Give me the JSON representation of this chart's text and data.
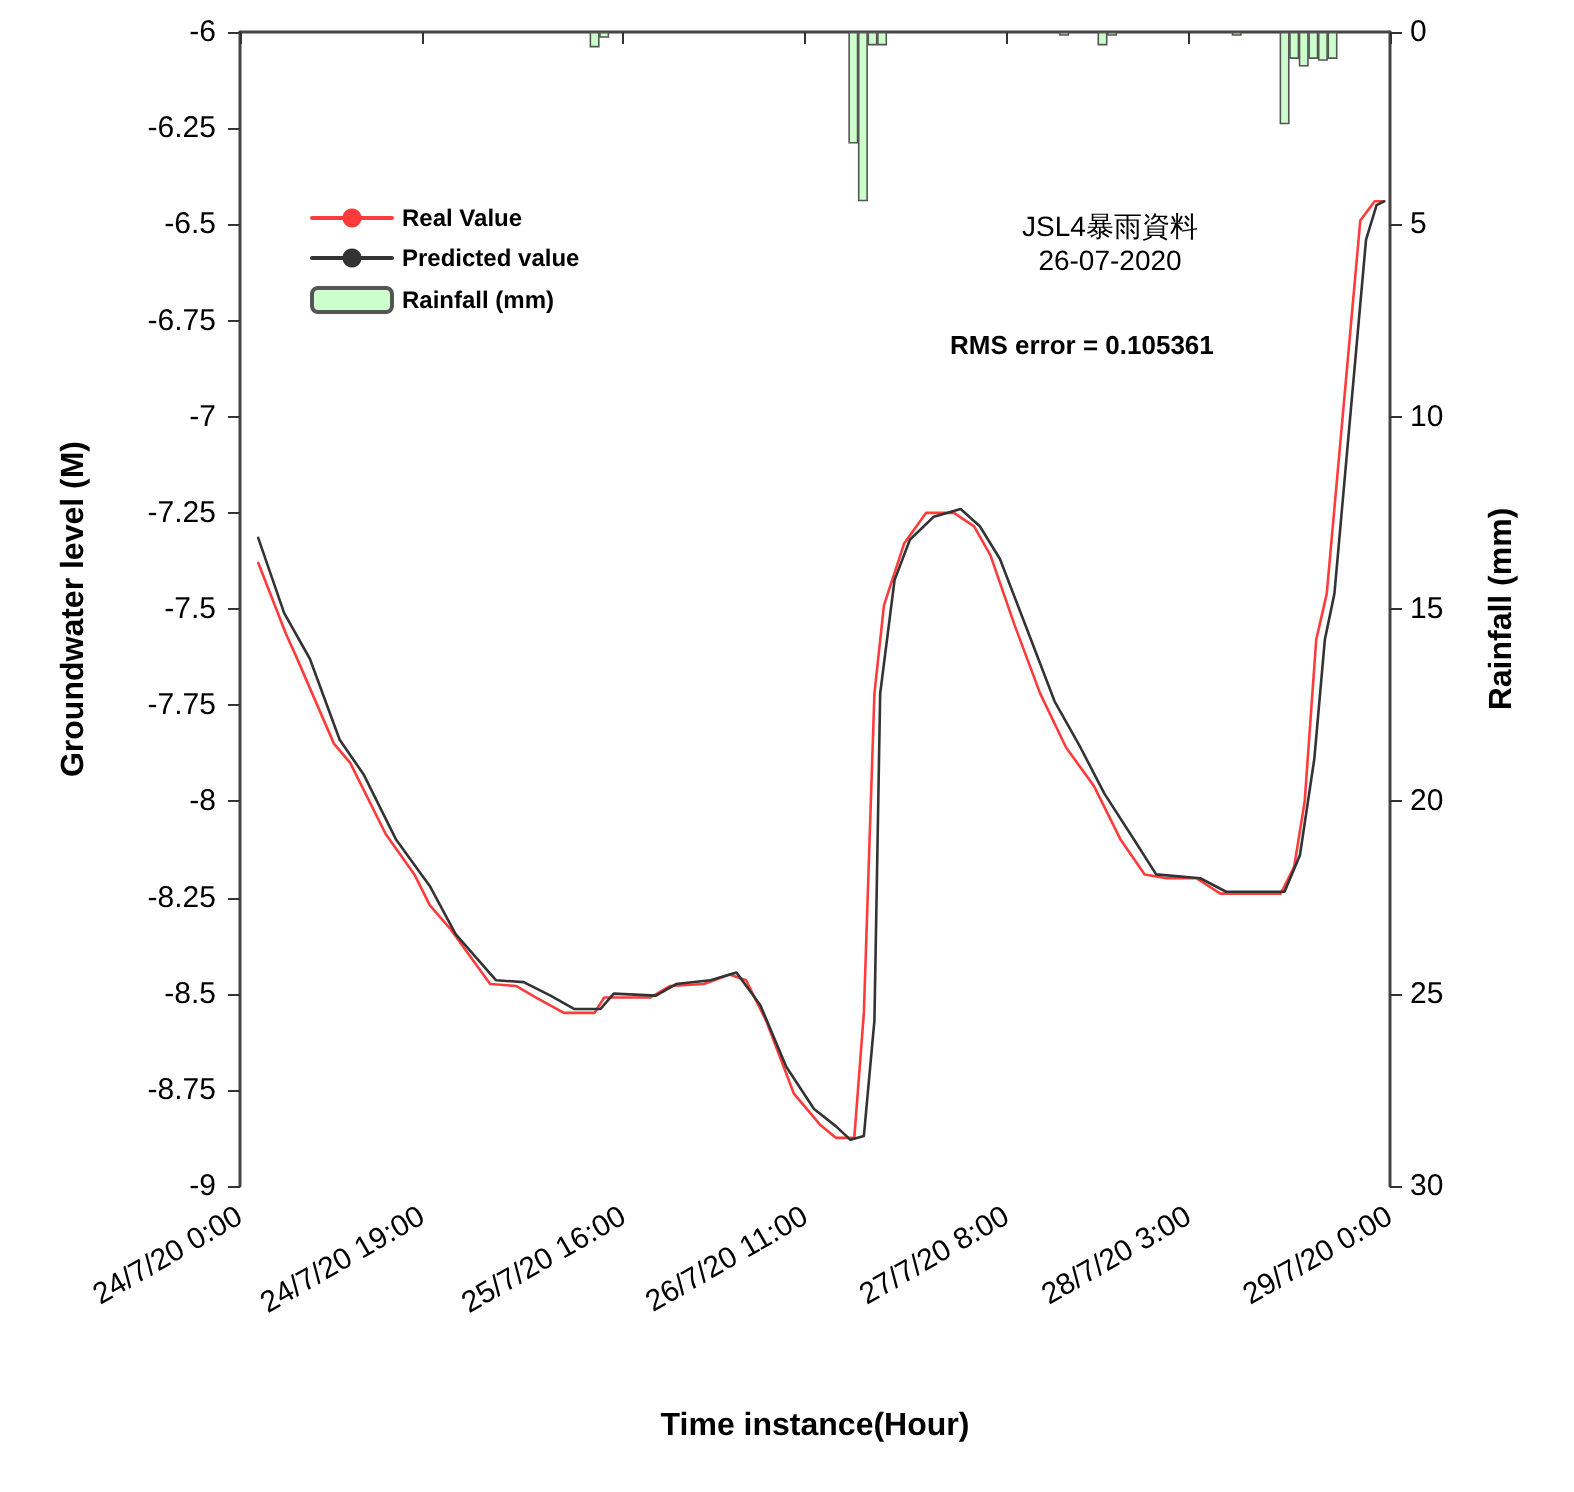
{
  "chart_data": {
    "type": "line",
    "xlabel": "Time instance(Hour)",
    "ylabel": "Groundwater level (M)",
    "y2label": "Rainfall (mm)",
    "annotations": [
      "JSL4暴雨資料",
      "26-07-2020",
      "RMS error = 0.105361"
    ],
    "xlim": [
      "2020-07-24T00:00",
      "2020-07-29T00:00"
    ],
    "xticks": [
      {
        "value": "2020-07-24T00:00",
        "label": "24/7/20 0:00"
      },
      {
        "value": "2020-07-24T19:00",
        "label": "24/7/20 19:00"
      },
      {
        "value": "2020-07-25T16:00",
        "label": "25/7/20 16:00"
      },
      {
        "value": "2020-07-26T11:00",
        "label": "26/7/20 11:00"
      },
      {
        "value": "2020-07-27T08:00",
        "label": "27/7/20 8:00"
      },
      {
        "value": "2020-07-28T03:00",
        "label": "28/7/20 3:00"
      },
      {
        "value": "2020-07-29T00:00",
        "label": "29/7/20 0:00"
      }
    ],
    "ylim": [
      -9,
      -6
    ],
    "yticks": [
      -9,
      -8.75,
      -8.5,
      -8.25,
      -8,
      -7.75,
      -7.5,
      -7.25,
      -7,
      -6.75,
      -6.5,
      -6.25,
      -6
    ],
    "y2lim": [
      30,
      0
    ],
    "y2ticks": [
      0,
      5,
      10,
      15,
      20,
      25,
      30
    ],
    "legend": "top left",
    "grid": false,
    "marker": "none",
    "line_style": "solid",
    "series": [
      {
        "name": "Real Value",
        "color": "#ff3b3b",
        "x": [
          "2020-07-24T01:54",
          "2020-07-24T04:48",
          "2020-07-24T05:48",
          "2020-07-24T09:48",
          "2020-07-24T11:30",
          "2020-07-24T15:12",
          "2020-07-24T18:12",
          "2020-07-24T19:48",
          "2020-07-24T21:54",
          "2020-07-25T02:06",
          "2020-07-25T04:48",
          "2020-07-25T06:54",
          "2020-07-25T09:48",
          "2020-07-25T13:00",
          "2020-07-25T14:00",
          "2020-07-25T18:48",
          "2020-07-25T20:54",
          "2020-07-26T00:24",
          "2020-07-26T03:06",
          "2020-07-26T04:48",
          "2020-07-26T06:54",
          "2020-07-26T09:48",
          "2020-07-26T12:30",
          "2020-07-26T14:12",
          "2020-07-26T16:06",
          "2020-07-26T17:06",
          "2020-07-26T18:12",
          "2020-07-26T19:12",
          "2020-07-26T21:18",
          "2020-07-26T23:36",
          "2020-07-27T02:30",
          "2020-07-27T04:36",
          "2020-07-27T06:18",
          "2020-07-27T08:48",
          "2020-07-27T11:30",
          "2020-07-27T14:12",
          "2020-07-27T17:06",
          "2020-07-27T19:54",
          "2020-07-27T22:24",
          "2020-07-28T00:42",
          "2020-07-28T03:48",
          "2020-07-28T06:18",
          "2020-07-28T12:36",
          "2020-07-28T14:00",
          "2020-07-28T15:06",
          "2020-07-28T16:18",
          "2020-07-28T17:24",
          "2020-07-28T20:54",
          "2020-07-28T22:24",
          "2020-07-28T23:12"
        ],
        "values": [
          -7.38,
          -7.565,
          -7.62,
          -7.85,
          -7.9,
          -8.085,
          -8.19,
          -8.27,
          -8.33,
          -8.475,
          -8.48,
          -8.51,
          -8.55,
          -8.55,
          -8.51,
          -8.51,
          -8.48,
          -8.475,
          -8.45,
          -8.465,
          -8.57,
          -8.76,
          -8.84,
          -8.875,
          -8.875,
          -8.55,
          -7.72,
          -7.49,
          -7.33,
          -7.25,
          -7.25,
          -7.285,
          -7.36,
          -7.54,
          -7.72,
          -7.86,
          -7.96,
          -8.1,
          -8.19,
          -8.2,
          -8.2,
          -8.24,
          -8.24,
          -8.17,
          -8.0,
          -7.58,
          -7.46,
          -6.49,
          -6.44,
          -6.44
        ]
      },
      {
        "name": "Predicted value",
        "color": "#333333",
        "x": [
          "2020-07-24T01:54",
          "2020-07-24T04:36",
          "2020-07-24T07:18",
          "2020-07-24T10:24",
          "2020-07-24T12:54",
          "2020-07-24T16:18",
          "2020-07-24T19:48",
          "2020-07-24T22:30",
          "2020-07-25T02:42",
          "2020-07-25T05:36",
          "2020-07-25T08:24",
          "2020-07-25T10:54",
          "2020-07-25T13:36",
          "2020-07-25T15:00",
          "2020-07-25T19:24",
          "2020-07-25T21:30",
          "2020-07-26T01:06",
          "2020-07-26T03:48",
          "2020-07-26T06:18",
          "2020-07-26T09:00",
          "2020-07-26T11:54",
          "2020-07-26T14:12",
          "2020-07-26T15:42",
          "2020-07-26T17:06",
          "2020-07-26T18:12",
          "2020-07-26T18:48",
          "2020-07-26T20:18",
          "2020-07-26T21:54",
          "2020-07-27T00:24",
          "2020-07-27T03:12",
          "2020-07-27T05:12",
          "2020-07-27T07:18",
          "2020-07-27T10:00",
          "2020-07-27T13:00",
          "2020-07-27T15:42",
          "2020-07-27T18:12",
          "2020-07-27T21:18",
          "2020-07-27T23:36",
          "2020-07-28T04:12",
          "2020-07-28T06:54",
          "2020-07-28T13:00",
          "2020-07-28T14:36",
          "2020-07-28T16:06",
          "2020-07-28T17:12",
          "2020-07-28T18:12",
          "2020-07-28T21:30",
          "2020-07-28T22:36",
          "2020-07-28T23:24"
        ],
        "values": [
          -7.315,
          -7.51,
          -7.63,
          -7.84,
          -7.93,
          -8.1,
          -8.22,
          -8.345,
          -8.465,
          -8.47,
          -8.505,
          -8.54,
          -8.54,
          -8.5,
          -8.505,
          -8.475,
          -8.465,
          -8.445,
          -8.53,
          -8.69,
          -8.8,
          -8.845,
          -8.88,
          -8.87,
          -8.57,
          -7.72,
          -7.425,
          -7.32,
          -7.26,
          -7.24,
          -7.285,
          -7.37,
          -7.545,
          -7.74,
          -7.86,
          -7.98,
          -8.1,
          -8.19,
          -8.2,
          -8.235,
          -8.235,
          -8.14,
          -7.89,
          -7.58,
          -7.46,
          -6.54,
          -6.45,
          -6.44
        ]
      },
      {
        "name": "Rainfall (mm)",
        "type": "bar",
        "axis": "y2",
        "color": "#ccffcc",
        "x": [
          "2020-07-25T13:00",
          "2020-07-25T14:00",
          "2020-07-26T16:00",
          "2020-07-26T17:00",
          "2020-07-26T18:00",
          "2020-07-26T19:00",
          "2020-07-27T14:00",
          "2020-07-27T18:00",
          "2020-07-27T19:00",
          "2020-07-28T08:00",
          "2020-07-28T13:00",
          "2020-07-28T14:00",
          "2020-07-28T15:00",
          "2020-07-28T16:00",
          "2020-07-28T17:00",
          "2020-07-28T18:00"
        ],
        "values": [
          0.4,
          0.15,
          2.9,
          4.4,
          0.35,
          0.35,
          0.1,
          0.35,
          0.1,
          0.1,
          2.4,
          0.7,
          0.9,
          0.7,
          0.75,
          0.7
        ]
      }
    ]
  }
}
